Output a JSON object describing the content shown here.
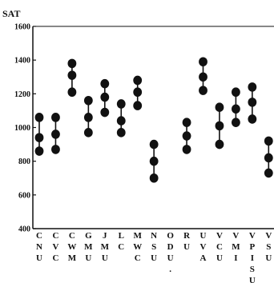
{
  "chart_data": {
    "type": "range-dot",
    "title": "",
    "ylabel": "SAT",
    "xlabel": "",
    "ylim": [
      400,
      1600
    ],
    "yticks": [
      400,
      600,
      800,
      1000,
      1200,
      1400,
      1600
    ],
    "grid": false,
    "legend": "none",
    "colors": {
      "marker": "#111111",
      "axis": "#111111",
      "background": "#ffffff"
    },
    "categories": [
      "CNU",
      "CVC",
      "CWM",
      "GMU",
      "JMU",
      "LC",
      "MWC",
      "NSU",
      "ODU.",
      "RU",
      "UVA",
      "VCU",
      "VMI",
      "VPISU",
      "VSU"
    ],
    "category_lines": [
      [
        "C",
        "N",
        "U"
      ],
      [
        "C",
        "V",
        "C"
      ],
      [
        "C",
        "W",
        "M"
      ],
      [
        "G",
        "M",
        "U"
      ],
      [
        "J",
        "M",
        "U"
      ],
      [
        "L",
        "C"
      ],
      [
        "M",
        "W",
        "C"
      ],
      [
        "N",
        "S",
        "U"
      ],
      [
        "O",
        "D",
        "U",
        "."
      ],
      [
        "R",
        "U"
      ],
      [
        "U",
        "V",
        "A"
      ],
      [
        "V",
        "C",
        "U"
      ],
      [
        "V",
        "M",
        "I"
      ],
      [
        "V",
        "P",
        "I",
        "S",
        "U"
      ],
      [
        "V",
        "S",
        "U"
      ]
    ],
    "series": [
      {
        "name": "",
        "values": [
          [
            860,
            940,
            1060
          ],
          [
            870,
            960,
            1060
          ],
          [
            1210,
            1310,
            1380
          ],
          [
            970,
            1060,
            1160
          ],
          [
            1090,
            1180,
            1260
          ],
          [
            970,
            1040,
            1140
          ],
          [
            1130,
            1210,
            1280
          ],
          [
            700,
            800,
            900
          ],
          [
            null,
            null,
            null
          ],
          [
            870,
            950,
            1030
          ],
          [
            1220,
            1300,
            1390
          ],
          [
            900,
            1010,
            1120
          ],
          [
            1030,
            1110,
            1210
          ],
          [
            1050,
            1150,
            1240
          ],
          [
            730,
            820,
            920
          ]
        ]
      }
    ]
  }
}
